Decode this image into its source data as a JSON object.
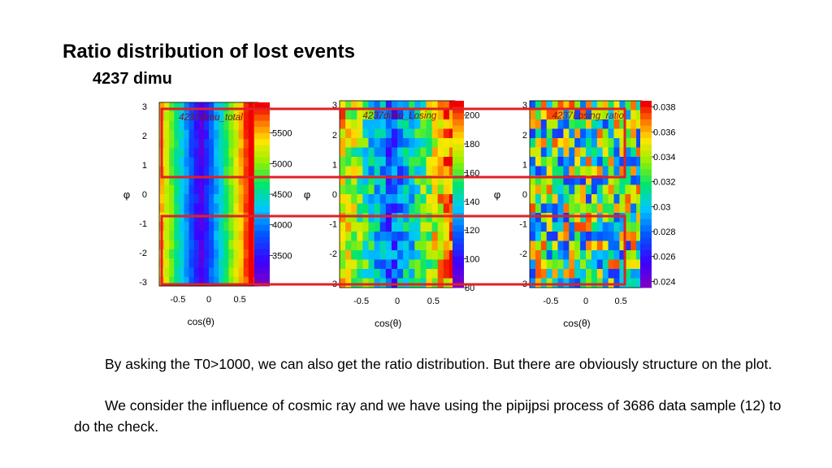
{
  "slide": {
    "title": "Ratio distribution of lost events",
    "subtitle": "4237 dimu",
    "paragraphs": [
      "By asking the T0>1000, we can also get the ratio distribution. But there are obviously structure on the plot.",
      "We consider the influence of cosmic ray and we have using the pipijpsi process of 3686 data sample (12) to do the check."
    ]
  },
  "chart_data": [
    {
      "type": "heatmap",
      "title": "4237dimu_total",
      "xlabel": "cos(θ)",
      "ylabel": "φ",
      "x_ticks": [
        "-0.5",
        "0",
        "0.5"
      ],
      "y_ticks": [
        "3",
        "2",
        "1",
        "0",
        "-1",
        "-2",
        "-3"
      ],
      "xlim": [
        -0.8,
        0.8
      ],
      "ylim": [
        -3.14,
        3.14
      ],
      "colorbar_ticks": [
        "5500",
        "5000",
        "4500",
        "4000",
        "3500"
      ],
      "colorbar_range": [
        3000,
        6000
      ]
    },
    {
      "type": "heatmap",
      "title": "4237dimu_Losing",
      "xlabel": "cos(θ)",
      "ylabel": "φ",
      "x_ticks": [
        "-0.5",
        "0",
        "0.5"
      ],
      "y_ticks": [
        "3",
        "2",
        "1",
        "0",
        "-1",
        "-2",
        "-3"
      ],
      "xlim": [
        -0.8,
        0.8
      ],
      "ylim": [
        -3.14,
        3.14
      ],
      "colorbar_ticks": [
        "200",
        "180",
        "160",
        "140",
        "120",
        "100",
        "80"
      ],
      "colorbar_range": [
        80,
        210
      ]
    },
    {
      "type": "heatmap",
      "title": "4237Losing_ratio",
      "xlabel": "cos(θ)",
      "ylabel": "φ",
      "x_ticks": [
        "-0.5",
        "0",
        "0.5"
      ],
      "y_ticks": [
        "3",
        "2",
        "1",
        "0",
        "-1",
        "-2",
        "-3"
      ],
      "xlim": [
        -0.8,
        0.8
      ],
      "ylim": [
        -3.14,
        3.14
      ],
      "colorbar_ticks": [
        "0.038",
        "0.036",
        "0.034",
        "0.032",
        "0.03",
        "0.028",
        "0.026",
        "0.024"
      ],
      "colorbar_range": [
        0.0235,
        0.0385
      ]
    }
  ],
  "highlight_color": "#e21f26"
}
